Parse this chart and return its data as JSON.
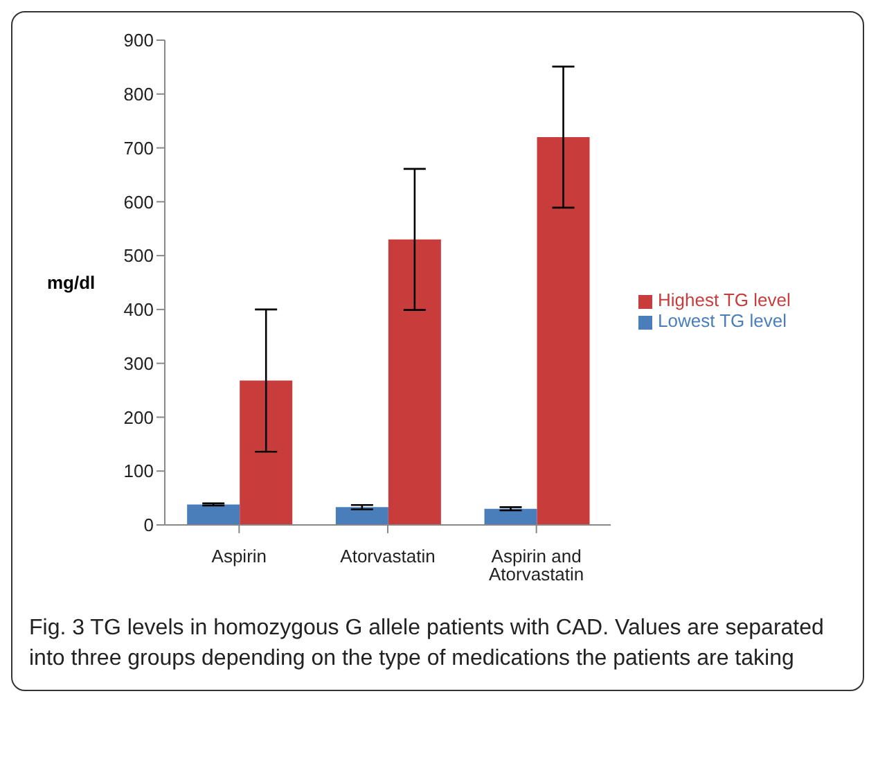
{
  "chart_data": {
    "type": "bar",
    "categories": [
      "Aspirin",
      "Atorvastatin",
      "Aspirin and Atorvastatin"
    ],
    "series": [
      {
        "name": "Lowest TG level",
        "color": "#4a7ebb",
        "values": [
          38,
          33,
          30
        ],
        "errors": [
          2,
          4,
          3
        ]
      },
      {
        "name": "Highest TG level",
        "color": "#c83c3c",
        "values": [
          268,
          530,
          720
        ],
        "errors": [
          132,
          131,
          131
        ]
      }
    ],
    "ylabel": "mg/dl",
    "ylim": [
      0,
      900
    ],
    "yticks": [
      0,
      100,
      200,
      300,
      400,
      500,
      600,
      700,
      800,
      900
    ],
    "grid": false,
    "legend": "right",
    "annotations": [
      "Fig. 3 TG levels in homozygous G allele patients with CAD. Values are separated into three groups depending on the type of medications the patients are taking"
    ]
  }
}
